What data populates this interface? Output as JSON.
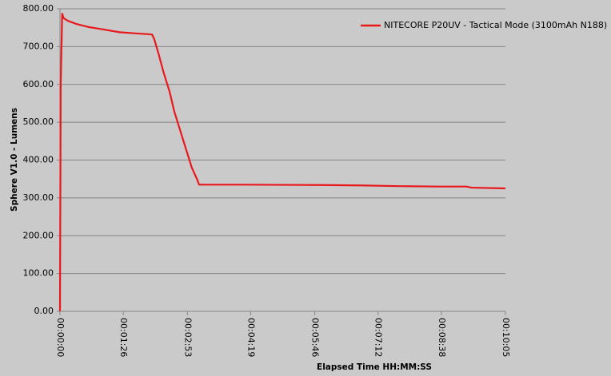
{
  "chart_data": {
    "type": "line",
    "y_label": "Sphere V1.0 - Lumens",
    "x_label": "Elapsed Time HH:MM:SS",
    "x": [
      0,
      1,
      3,
      5,
      11,
      22,
      38,
      60,
      81,
      103,
      125,
      128,
      134,
      141,
      149,
      155,
      163,
      171,
      179,
      186,
      189,
      244,
      353,
      407,
      462,
      516,
      552,
      559,
      605
    ],
    "series": [
      {
        "name": "NITECORE P20UV - Tactical Mode (3100mAh N188)",
        "color": "#e8181c",
        "values": [
          0,
          600,
          787,
          775,
          768,
          760,
          752,
          745,
          738,
          735,
          732,
          720,
          680,
          630,
          580,
          530,
          480,
          430,
          380,
          350,
          335,
          335,
          334,
          333,
          331,
          330,
          330,
          327,
          325
        ]
      }
    ],
    "xlim": [
      0,
      605
    ],
    "xticks": [
      {
        "value": 0,
        "label": "00:00:00"
      },
      {
        "value": 86,
        "label": "00:01:26"
      },
      {
        "value": 173,
        "label": "00:02:53"
      },
      {
        "value": 259,
        "label": "00:04:19"
      },
      {
        "value": 346,
        "label": "00:05:46"
      },
      {
        "value": 432,
        "label": "00:07:12"
      },
      {
        "value": 518,
        "label": "00:08:38"
      },
      {
        "value": 605,
        "label": "00:10:05"
      }
    ],
    "ylim": [
      0,
      800
    ],
    "yticks": [
      {
        "value": 0,
        "label": "0.00"
      },
      {
        "value": 100,
        "label": "100.00"
      },
      {
        "value": 200,
        "label": "200.00"
      },
      {
        "value": 300,
        "label": "300.00"
      },
      {
        "value": 400,
        "label": "400.00"
      },
      {
        "value": 500,
        "label": "500.00"
      },
      {
        "value": 600,
        "label": "600.00"
      },
      {
        "value": 700,
        "label": "700.00"
      },
      {
        "value": 800,
        "label": "800.00"
      }
    ],
    "grid": true,
    "legend": "top-right"
  }
}
